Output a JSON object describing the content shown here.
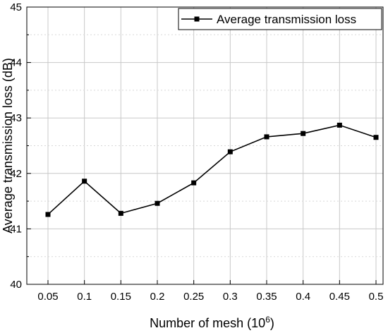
{
  "chart_data": {
    "type": "line",
    "title": "",
    "xlabel": "Number of mesh (10",
    "xlabel_exponent": "6",
    "xlabel_suffix": ")",
    "ylabel": "Average transmission loss (dB)",
    "categories": [
      "0.05",
      "0.1",
      "0.15",
      "0.2",
      "0.25",
      "0.3",
      "0.35",
      "0.4",
      "0.45",
      "0.5"
    ],
    "x": [
      0.05,
      0.1,
      0.15,
      0.2,
      0.25,
      0.3,
      0.35,
      0.4,
      0.45,
      0.5
    ],
    "xlim": [
      0.05,
      0.5
    ],
    "ylim": [
      40,
      45
    ],
    "yticks": [
      40,
      41,
      42,
      43,
      44,
      45
    ],
    "grid": true,
    "legend_position": "top-right",
    "series": [
      {
        "name": "Average transmission loss",
        "values": [
          41.26,
          41.86,
          41.28,
          41.46,
          41.83,
          42.39,
          42.66,
          42.72,
          42.87,
          42.65
        ],
        "color": "#000000",
        "marker": "square"
      }
    ]
  }
}
